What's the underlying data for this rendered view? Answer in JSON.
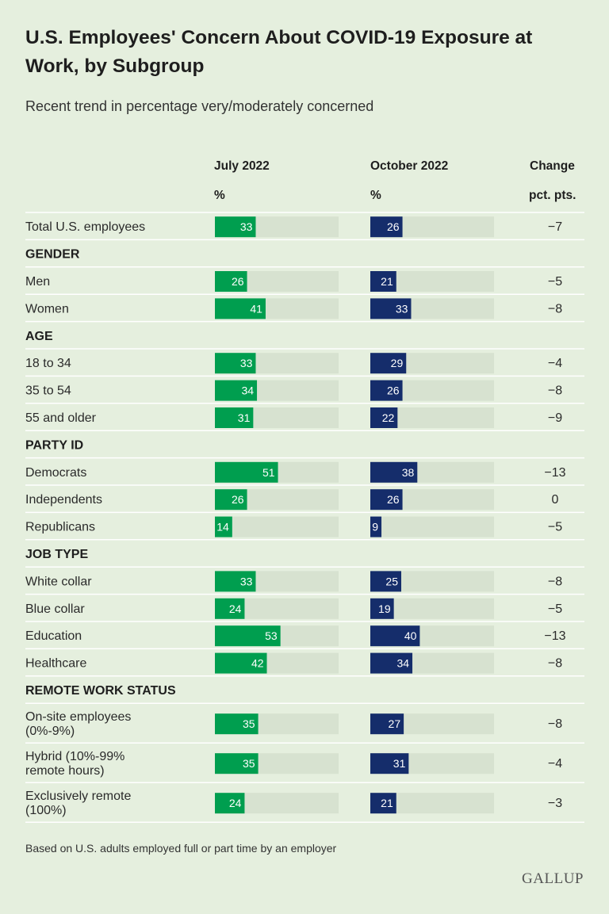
{
  "title": "U.S. Employees' Concern About COVID-19 Exposure at Work, by Subgroup",
  "subtitle": "Recent trend in percentage very/moderately concerned",
  "columns": {
    "july": "July 2022",
    "october": "October 2022",
    "change": "Change",
    "july_unit": "%",
    "october_unit": "%",
    "change_unit": "pct. pts."
  },
  "footnote": "Based on U.S. adults employed full or part time by an employer",
  "logo": "GALLUP",
  "colors": {
    "july": "#009e4f",
    "october": "#152d6b",
    "track": "#d7e2d0",
    "background": "#e5efde"
  },
  "chart_data": {
    "type": "bar",
    "series": [
      {
        "name": "July 2022",
        "key": "july"
      },
      {
        "name": "October 2022",
        "key": "october"
      }
    ],
    "xlim": [
      0,
      100
    ],
    "rows": [
      {
        "kind": "item",
        "label": [
          "Total U.S. employees"
        ],
        "july": 33,
        "october": 26,
        "change": "−7"
      },
      {
        "kind": "header",
        "label": [
          "GENDER"
        ]
      },
      {
        "kind": "item",
        "label": [
          "Men"
        ],
        "july": 26,
        "october": 21,
        "change": "−5"
      },
      {
        "kind": "item",
        "label": [
          "Women"
        ],
        "july": 41,
        "october": 33,
        "change": "−8"
      },
      {
        "kind": "header",
        "label": [
          "AGE"
        ]
      },
      {
        "kind": "item",
        "label": [
          "18 to 34"
        ],
        "july": 33,
        "october": 29,
        "change": "−4"
      },
      {
        "kind": "item",
        "label": [
          "35 to 54"
        ],
        "july": 34,
        "october": 26,
        "change": "−8"
      },
      {
        "kind": "item",
        "label": [
          "55 and older"
        ],
        "july": 31,
        "october": 22,
        "change": "−9"
      },
      {
        "kind": "header",
        "label": [
          "PARTY ID"
        ]
      },
      {
        "kind": "item",
        "label": [
          "Democrats"
        ],
        "july": 51,
        "october": 38,
        "change": "−13"
      },
      {
        "kind": "item",
        "label": [
          "Independents"
        ],
        "july": 26,
        "october": 26,
        "change": "0"
      },
      {
        "kind": "item",
        "label": [
          "Republicans"
        ],
        "july": 14,
        "october": 9,
        "change": "−5"
      },
      {
        "kind": "header",
        "label": [
          "JOB TYPE"
        ]
      },
      {
        "kind": "item",
        "label": [
          "White collar"
        ],
        "july": 33,
        "october": 25,
        "change": "−8"
      },
      {
        "kind": "item",
        "label": [
          "Blue collar"
        ],
        "july": 24,
        "october": 19,
        "change": "−5"
      },
      {
        "kind": "item",
        "label": [
          "Education"
        ],
        "july": 53,
        "october": 40,
        "change": "−13"
      },
      {
        "kind": "item",
        "label": [
          "Healthcare"
        ],
        "july": 42,
        "october": 34,
        "change": "−8"
      },
      {
        "kind": "header",
        "label": [
          "REMOTE WORK STATUS"
        ]
      },
      {
        "kind": "item",
        "label": [
          "On-site employees",
          "(0%-9%)"
        ],
        "july": 35,
        "october": 27,
        "change": "−8"
      },
      {
        "kind": "item",
        "label": [
          "Hybrid (10%-99%",
          "remote hours)"
        ],
        "july": 35,
        "october": 31,
        "change": "−4"
      },
      {
        "kind": "item",
        "label": [
          "Exclusively remote",
          "(100%)"
        ],
        "july": 24,
        "october": 21,
        "change": "−3"
      }
    ]
  }
}
